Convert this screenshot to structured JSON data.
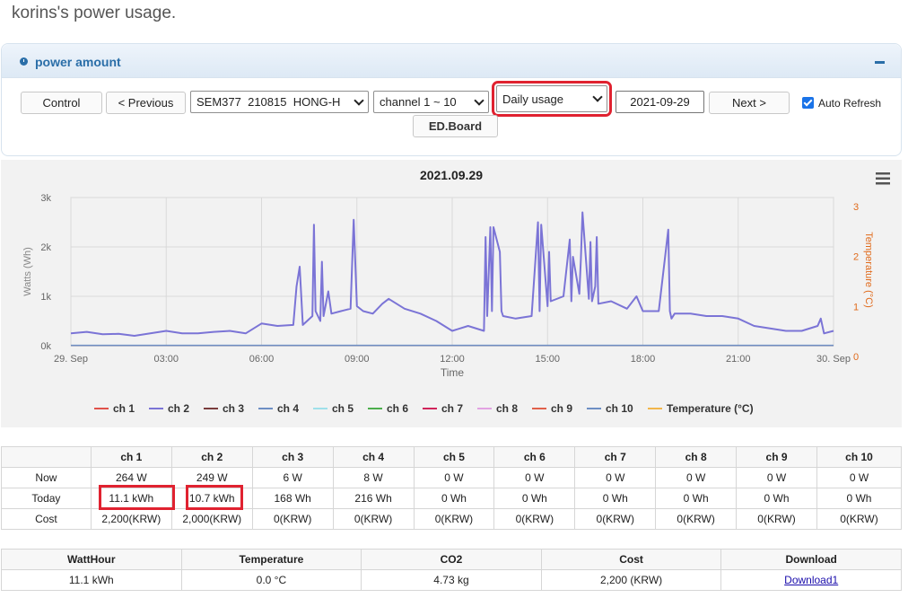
{
  "page_title": "korins's power usage.",
  "panel": {
    "title": "power amount"
  },
  "toolbar": {
    "control": "Control",
    "previous": "< Previous",
    "device": "SEM377  210815  HONG-H",
    "channel": "channel 1 ~ 10",
    "usage": "Daily usage",
    "date": "2021-09-29",
    "next": "Next >",
    "auto_refresh": "Auto Refresh",
    "ed_board": "ED.Board"
  },
  "chart_data": {
    "type": "line",
    "title": "2021.09.29",
    "xlabel": "Time",
    "ylabel": "Watts (Wh)",
    "y2label": "Temperature (°C)",
    "ylim": [
      0,
      3000
    ],
    "y2lim": [
      0,
      3
    ],
    "y_ticks": [
      "0k",
      "1k",
      "2k",
      "3k"
    ],
    "y2_ticks": [
      "0",
      "1",
      "2",
      "3"
    ],
    "x_ticks": [
      "29. Sep",
      "03:00",
      "06:00",
      "09:00",
      "12:00",
      "15:00",
      "18:00",
      "21:00",
      "30. Sep"
    ],
    "xlim_hours": [
      0,
      24
    ],
    "legend": [
      "ch 1",
      "ch 2",
      "ch 3",
      "ch 4",
      "ch 5",
      "ch 6",
      "ch 7",
      "ch 8",
      "ch 9",
      "ch 10",
      "Temperature (°C)"
    ],
    "legend_colors": [
      "#e0524a",
      "#7b74d6",
      "#7a3c3c",
      "#6d8fc4",
      "#9fe0ea",
      "#4cae4c",
      "#d0245a",
      "#e2a2e2",
      "#e0604a",
      "#6d8fc4",
      "#f2b64b"
    ],
    "series": [
      {
        "name": "ch 2",
        "color": "#7b74d6",
        "x": [
          0,
          0.5,
          1,
          1.5,
          2,
          2.5,
          3,
          3.5,
          4,
          4.5,
          5,
          5.5,
          6,
          6.5,
          7,
          7.1,
          7.2,
          7.3,
          7.6,
          7.65,
          7.7,
          7.85,
          7.9,
          7.95,
          8.1,
          8.2,
          8.5,
          8.8,
          8.9,
          9.0,
          9.2,
          9.5,
          9.8,
          10,
          10.5,
          11,
          11.5,
          12,
          12.5,
          13,
          13.05,
          13.1,
          13.2,
          13.25,
          13.3,
          13.5,
          13.55,
          13.6,
          14,
          14.5,
          14.7,
          14.75,
          14.8,
          15,
          15.05,
          15.1,
          15.5,
          15.7,
          15.75,
          15.8,
          16,
          16.05,
          16.1,
          16.3,
          16.35,
          16.4,
          16.5,
          16.55,
          16.6,
          17,
          17.5,
          17.8,
          18,
          18.5,
          18.8,
          18.85,
          18.9,
          19,
          19.5,
          20,
          20.5,
          21,
          21.5,
          22,
          22.5,
          23,
          23.5,
          23.6,
          23.7,
          24
        ],
        "values": [
          250,
          280,
          230,
          240,
          200,
          250,
          300,
          250,
          250,
          280,
          300,
          250,
          450,
          400,
          420,
          1200,
          1600,
          420,
          600,
          2450,
          700,
          500,
          1700,
          600,
          1100,
          650,
          700,
          750,
          2550,
          800,
          700,
          650,
          850,
          950,
          750,
          650,
          500,
          300,
          400,
          300,
          2200,
          600,
          2400,
          700,
          2400,
          1900,
          700,
          600,
          550,
          600,
          2500,
          700,
          2450,
          800,
          1900,
          900,
          1000,
          2150,
          900,
          1800,
          1050,
          1750,
          2700,
          950,
          2100,
          900,
          1200,
          2200,
          850,
          900,
          750,
          1000,
          700,
          700,
          2350,
          700,
          550,
          650,
          650,
          600,
          600,
          550,
          400,
          350,
          300,
          300,
          400,
          550,
          250,
          300
        ]
      },
      {
        "name": "ch 3",
        "color": "#7a3c3c",
        "x": [
          0,
          24
        ],
        "values": [
          6,
          6
        ]
      },
      {
        "name": "ch 4",
        "color": "#6d8fc4",
        "x": [
          0,
          24
        ],
        "values": [
          8,
          8
        ]
      }
    ]
  },
  "channel_table": {
    "headers": [
      "",
      "ch 1",
      "ch 2",
      "ch 3",
      "ch 4",
      "ch 5",
      "ch 6",
      "ch 7",
      "ch 8",
      "ch 9",
      "ch 10"
    ],
    "rows": [
      [
        "Now",
        "264 W",
        "249 W",
        "6 W",
        "8 W",
        "0 W",
        "0 W",
        "0 W",
        "0 W",
        "0 W",
        "0 W"
      ],
      [
        "Today",
        "11.1 kWh",
        "10.7 kWh",
        "168 Wh",
        "216 Wh",
        "0 Wh",
        "0 Wh",
        "0 Wh",
        "0 Wh",
        "0 Wh",
        "0 Wh"
      ],
      [
        "Cost",
        "2,200(KRW)",
        "2,000(KRW)",
        "0(KRW)",
        "0(KRW)",
        "0(KRW)",
        "0(KRW)",
        "0(KRW)",
        "0(KRW)",
        "0(KRW)",
        "0(KRW)"
      ]
    ]
  },
  "summary_table": {
    "headers": [
      "WattHour",
      "Temperature",
      "CO2",
      "Cost",
      "Download"
    ],
    "row": [
      "11.1 kWh",
      "0.0 °C",
      "4.73 kg",
      "2,200 (KRW)"
    ],
    "download_link": "Download1"
  }
}
